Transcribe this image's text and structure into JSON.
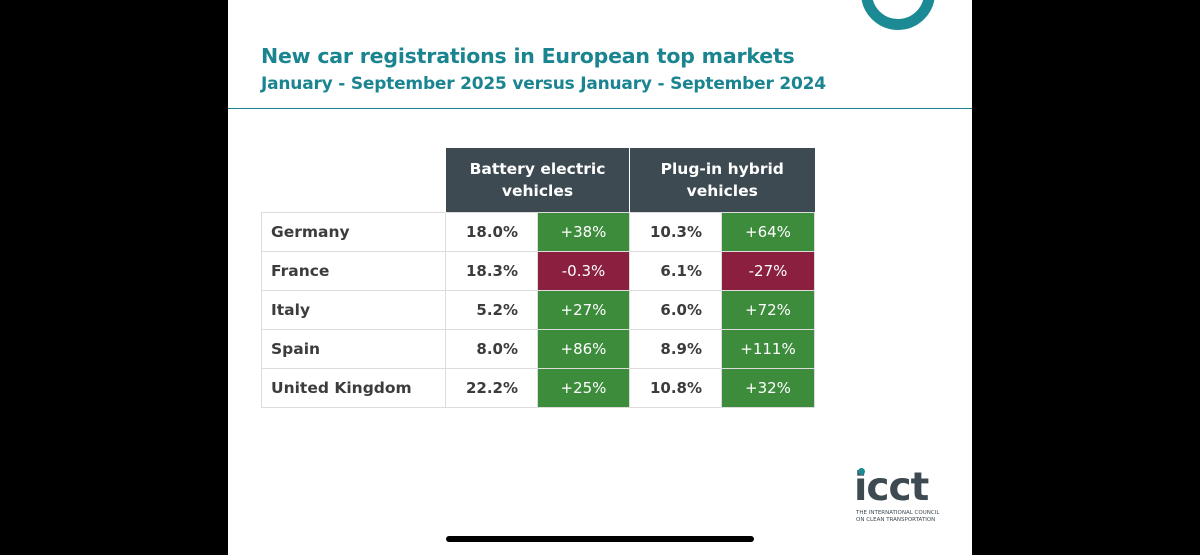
{
  "chart_data": {
    "type": "table",
    "title": "New car registrations in European top markets",
    "subtitle": "January - September 2025 versus January - September 2024",
    "columns": [
      "Battery electric vehicles",
      "Plug-in hybrid vehicles"
    ],
    "rows": [
      {
        "country": "Germany",
        "bev_share": "18.0%",
        "bev_change": "+38%",
        "phev_share": "10.3%",
        "phev_change": "+64%"
      },
      {
        "country": "France",
        "bev_share": "18.3%",
        "bev_change": "-0.3%",
        "phev_share": "6.1%",
        "phev_change": "-27%"
      },
      {
        "country": "Italy",
        "bev_share": "5.2%",
        "bev_change": "+27%",
        "phev_share": "6.0%",
        "phev_change": "+72%"
      },
      {
        "country": "Spain",
        "bev_share": "8.0%",
        "bev_change": "+86%",
        "phev_share": "8.9%",
        "phev_change": "+111%"
      },
      {
        "country": "United Kingdom",
        "bev_share": "22.2%",
        "bev_change": "+25%",
        "phev_share": "10.8%",
        "phev_change": "+32%"
      }
    ],
    "colors": {
      "positive": "#3c8c3c",
      "negative": "#8b1f3f",
      "header": "#3d4a52",
      "title": "#1a8590"
    }
  },
  "logo": {
    "word": "icct",
    "tagline": "THE INTERNATIONAL COUNCIL ON CLEAN TRANSPORTATION"
  }
}
